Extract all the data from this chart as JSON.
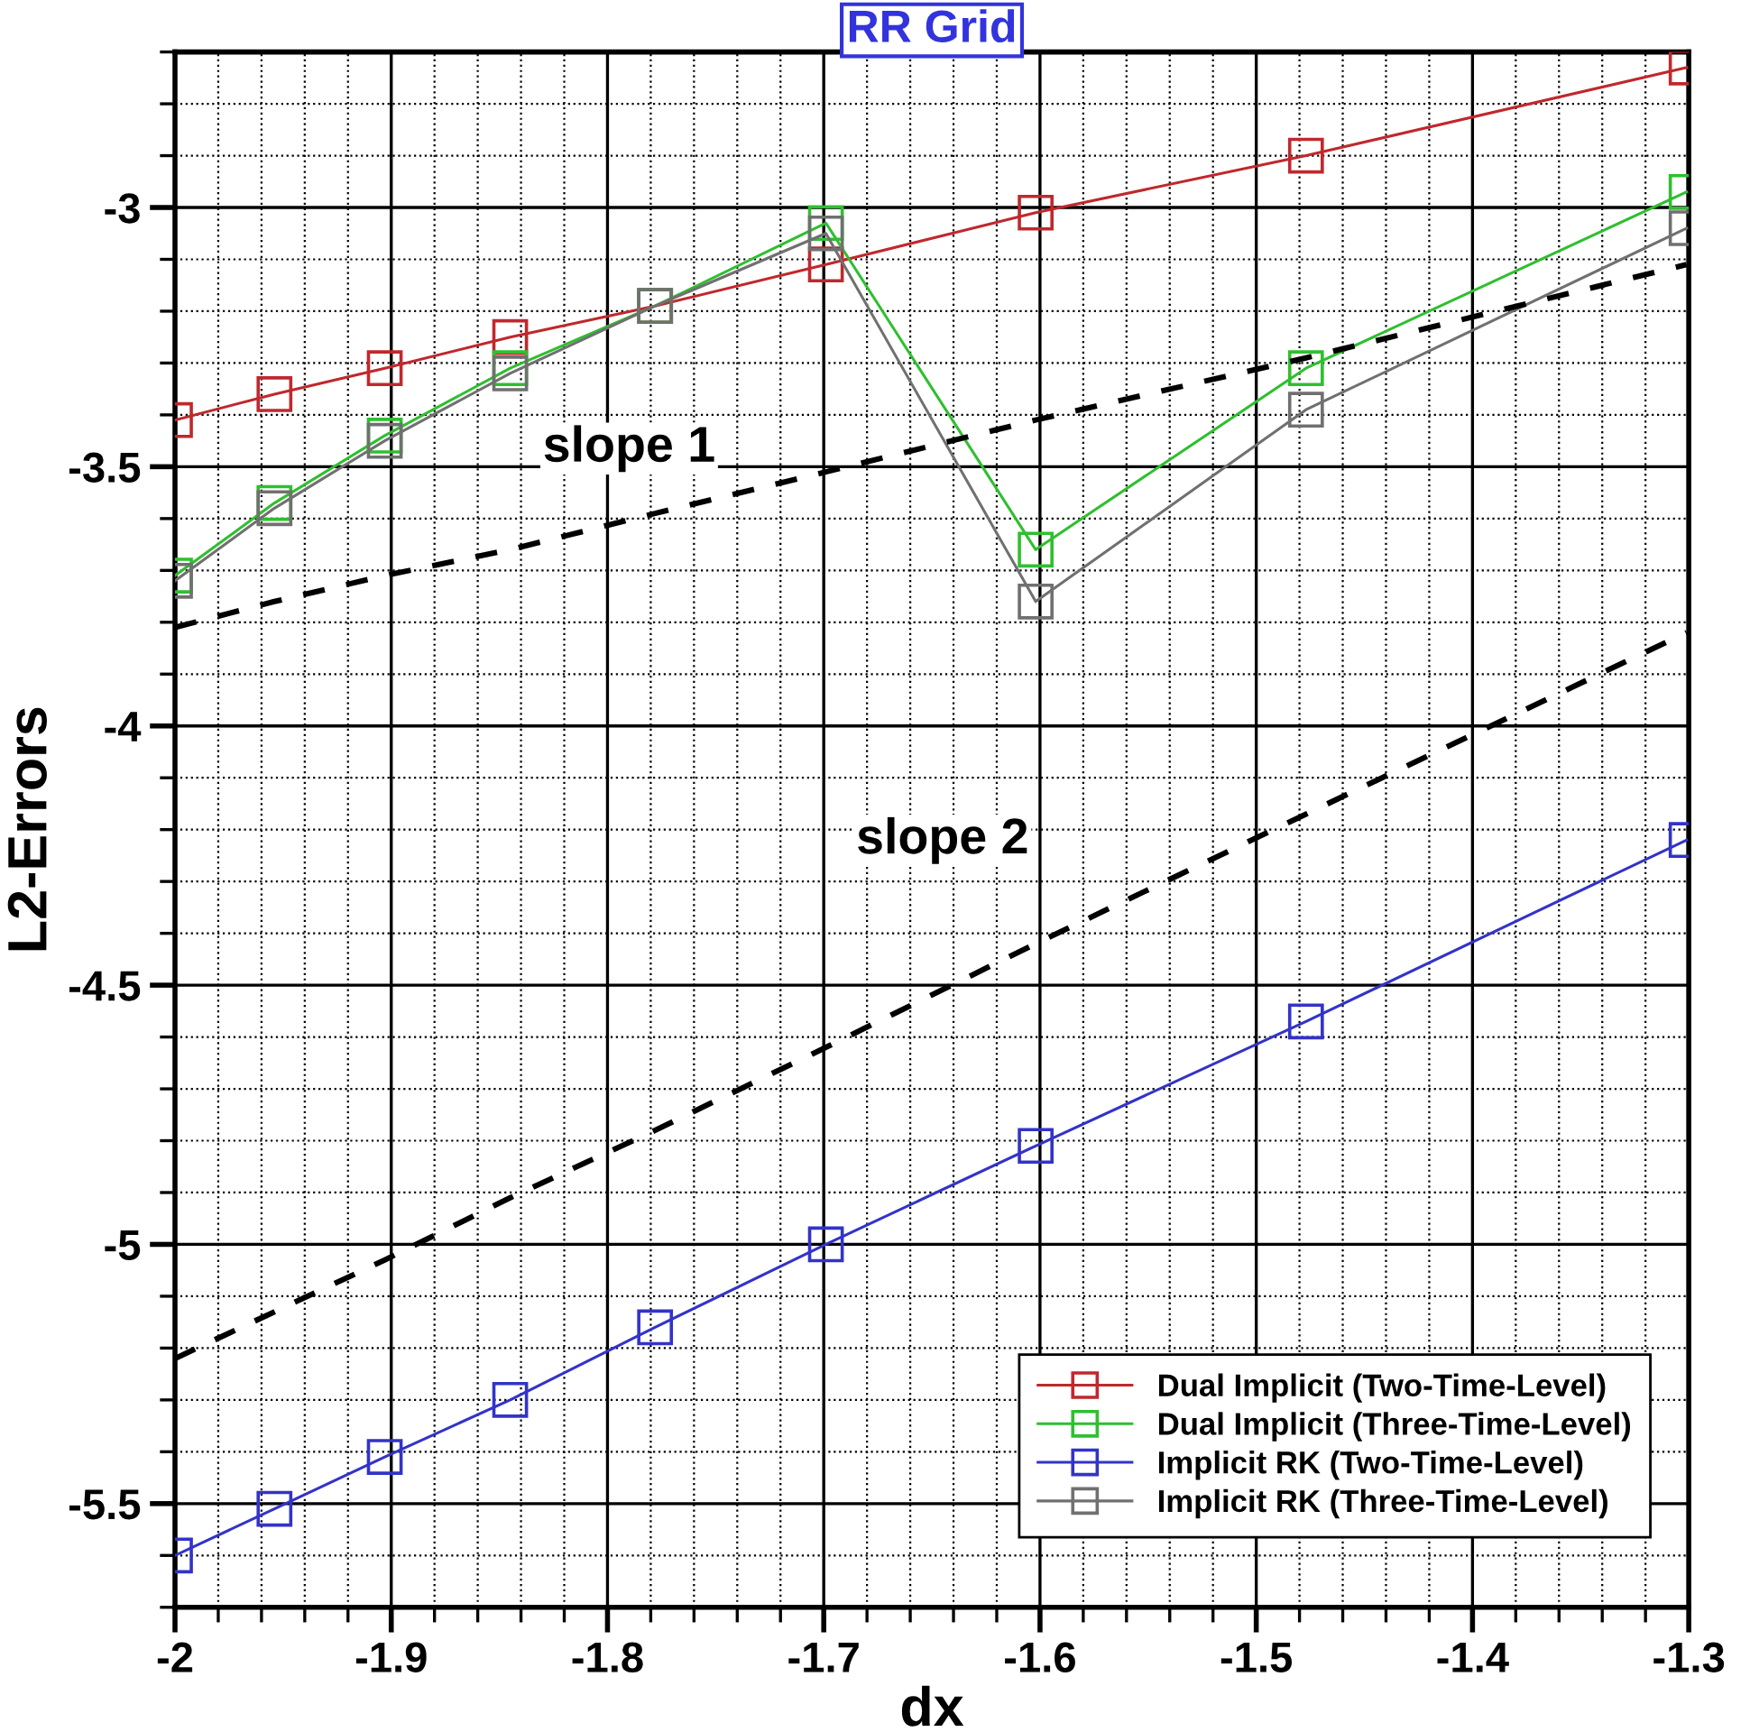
{
  "chart_data": {
    "type": "line",
    "title": "RR Grid",
    "xlabel": "dx",
    "ylabel": "L2-Errors",
    "xlim": [
      -2,
      -1.3
    ],
    "ylim": [
      -5.7,
      -2.7
    ],
    "xticks": [
      -2,
      -1.9,
      -1.8,
      -1.7,
      -1.6,
      -1.5,
      -1.4,
      -1.3
    ],
    "yticks": [
      -5.5,
      -5,
      -4.5,
      -4,
      -3.5,
      -3
    ],
    "grid": true,
    "legend": "bottom right",
    "marker": "square",
    "line_style": "solid",
    "x": [
      -2,
      -1.954,
      -1.903,
      -1.845,
      -1.778,
      -1.699,
      -1.602,
      -1.477,
      -1.301
    ],
    "series": [
      {
        "name": "Dual Implicit (Two-Time-Level)",
        "color": "#c0282d",
        "values": [
          -3.41,
          -3.36,
          -3.31,
          -3.25,
          -3.19,
          -3.11,
          -3.01,
          -2.9,
          -2.73
        ]
      },
      {
        "name": "Dual Implicit (Three-Time-Level)",
        "color": "#2fbf2f",
        "values": [
          -3.71,
          -3.57,
          -3.44,
          -3.31,
          -3.19,
          -3.03,
          -3.66,
          -3.31,
          -2.97
        ]
      },
      {
        "name": "Implicit RK (Two-Time-Level)",
        "color": "#3333c8",
        "values": [
          -5.6,
          -5.51,
          -5.41,
          -5.3,
          -5.16,
          -5.0,
          -4.81,
          -4.57,
          -4.22
        ]
      },
      {
        "name": "Implicit RK (Three-Time-Level)",
        "color": "#707070",
        "values": [
          -3.72,
          -3.58,
          -3.45,
          -3.32,
          -3.19,
          -3.05,
          -3.76,
          -3.39,
          -3.04
        ]
      },
      {
        "type": "line",
        "color": "#000000",
        "marker": "none",
        "line_style": "dashed",
        "values": [
          -3.81,
          -3.76,
          -3.71,
          -3.66,
          -3.59,
          -3.51,
          -3.41,
          -3.29,
          -3.11
        ]
      },
      {
        "type": "line",
        "color": "#000000",
        "marker": "none",
        "line_style": "dashed",
        "values": [
          -5.22,
          -5.13,
          -5.03,
          -4.91,
          -4.78,
          -4.62,
          -4.42,
          -4.17,
          -3.82
        ]
      }
    ],
    "annotations": [
      "slope 1",
      "slope 2"
    ]
  }
}
